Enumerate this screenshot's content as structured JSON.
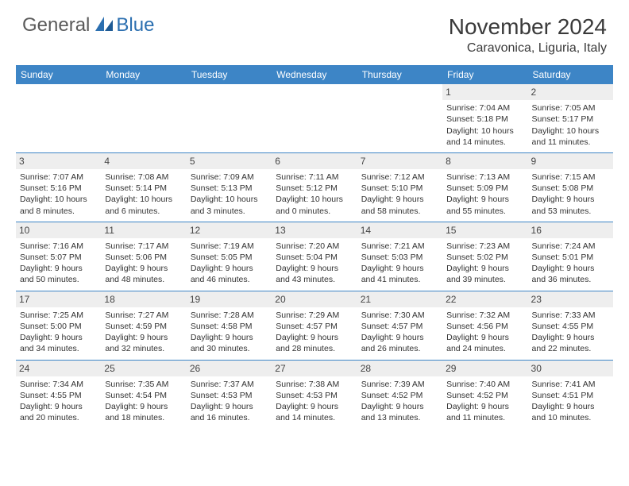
{
  "logo": {
    "text1": "General",
    "text2": "Blue"
  },
  "title": "November 2024",
  "location": "Caravonica, Liguria, Italy",
  "colors": {
    "header_bg": "#3d85c6",
    "header_text": "#ffffff",
    "daynum_bg": "#eeeeee",
    "logo_gray": "#5a5a5a",
    "logo_blue": "#2b6fb0",
    "rule": "#3d85c6"
  },
  "weekdays": [
    "Sunday",
    "Monday",
    "Tuesday",
    "Wednesday",
    "Thursday",
    "Friday",
    "Saturday"
  ],
  "weeks": [
    [
      {
        "day": "",
        "lines": [
          "",
          "",
          "",
          ""
        ]
      },
      {
        "day": "",
        "lines": [
          "",
          "",
          "",
          ""
        ]
      },
      {
        "day": "",
        "lines": [
          "",
          "",
          "",
          ""
        ]
      },
      {
        "day": "",
        "lines": [
          "",
          "",
          "",
          ""
        ]
      },
      {
        "day": "",
        "lines": [
          "",
          "",
          "",
          ""
        ]
      },
      {
        "day": "1",
        "lines": [
          "Sunrise: 7:04 AM",
          "Sunset: 5:18 PM",
          "Daylight: 10 hours",
          "and 14 minutes."
        ]
      },
      {
        "day": "2",
        "lines": [
          "Sunrise: 7:05 AM",
          "Sunset: 5:17 PM",
          "Daylight: 10 hours",
          "and 11 minutes."
        ]
      }
    ],
    [
      {
        "day": "3",
        "lines": [
          "Sunrise: 7:07 AM",
          "Sunset: 5:16 PM",
          "Daylight: 10 hours",
          "and 8 minutes."
        ]
      },
      {
        "day": "4",
        "lines": [
          "Sunrise: 7:08 AM",
          "Sunset: 5:14 PM",
          "Daylight: 10 hours",
          "and 6 minutes."
        ]
      },
      {
        "day": "5",
        "lines": [
          "Sunrise: 7:09 AM",
          "Sunset: 5:13 PM",
          "Daylight: 10 hours",
          "and 3 minutes."
        ]
      },
      {
        "day": "6",
        "lines": [
          "Sunrise: 7:11 AM",
          "Sunset: 5:12 PM",
          "Daylight: 10 hours",
          "and 0 minutes."
        ]
      },
      {
        "day": "7",
        "lines": [
          "Sunrise: 7:12 AM",
          "Sunset: 5:10 PM",
          "Daylight: 9 hours",
          "and 58 minutes."
        ]
      },
      {
        "day": "8",
        "lines": [
          "Sunrise: 7:13 AM",
          "Sunset: 5:09 PM",
          "Daylight: 9 hours",
          "and 55 minutes."
        ]
      },
      {
        "day": "9",
        "lines": [
          "Sunrise: 7:15 AM",
          "Sunset: 5:08 PM",
          "Daylight: 9 hours",
          "and 53 minutes."
        ]
      }
    ],
    [
      {
        "day": "10",
        "lines": [
          "Sunrise: 7:16 AM",
          "Sunset: 5:07 PM",
          "Daylight: 9 hours",
          "and 50 minutes."
        ]
      },
      {
        "day": "11",
        "lines": [
          "Sunrise: 7:17 AM",
          "Sunset: 5:06 PM",
          "Daylight: 9 hours",
          "and 48 minutes."
        ]
      },
      {
        "day": "12",
        "lines": [
          "Sunrise: 7:19 AM",
          "Sunset: 5:05 PM",
          "Daylight: 9 hours",
          "and 46 minutes."
        ]
      },
      {
        "day": "13",
        "lines": [
          "Sunrise: 7:20 AM",
          "Sunset: 5:04 PM",
          "Daylight: 9 hours",
          "and 43 minutes."
        ]
      },
      {
        "day": "14",
        "lines": [
          "Sunrise: 7:21 AM",
          "Sunset: 5:03 PM",
          "Daylight: 9 hours",
          "and 41 minutes."
        ]
      },
      {
        "day": "15",
        "lines": [
          "Sunrise: 7:23 AM",
          "Sunset: 5:02 PM",
          "Daylight: 9 hours",
          "and 39 minutes."
        ]
      },
      {
        "day": "16",
        "lines": [
          "Sunrise: 7:24 AM",
          "Sunset: 5:01 PM",
          "Daylight: 9 hours",
          "and 36 minutes."
        ]
      }
    ],
    [
      {
        "day": "17",
        "lines": [
          "Sunrise: 7:25 AM",
          "Sunset: 5:00 PM",
          "Daylight: 9 hours",
          "and 34 minutes."
        ]
      },
      {
        "day": "18",
        "lines": [
          "Sunrise: 7:27 AM",
          "Sunset: 4:59 PM",
          "Daylight: 9 hours",
          "and 32 minutes."
        ]
      },
      {
        "day": "19",
        "lines": [
          "Sunrise: 7:28 AM",
          "Sunset: 4:58 PM",
          "Daylight: 9 hours",
          "and 30 minutes."
        ]
      },
      {
        "day": "20",
        "lines": [
          "Sunrise: 7:29 AM",
          "Sunset: 4:57 PM",
          "Daylight: 9 hours",
          "and 28 minutes."
        ]
      },
      {
        "day": "21",
        "lines": [
          "Sunrise: 7:30 AM",
          "Sunset: 4:57 PM",
          "Daylight: 9 hours",
          "and 26 minutes."
        ]
      },
      {
        "day": "22",
        "lines": [
          "Sunrise: 7:32 AM",
          "Sunset: 4:56 PM",
          "Daylight: 9 hours",
          "and 24 minutes."
        ]
      },
      {
        "day": "23",
        "lines": [
          "Sunrise: 7:33 AM",
          "Sunset: 4:55 PM",
          "Daylight: 9 hours",
          "and 22 minutes."
        ]
      }
    ],
    [
      {
        "day": "24",
        "lines": [
          "Sunrise: 7:34 AM",
          "Sunset: 4:55 PM",
          "Daylight: 9 hours",
          "and 20 minutes."
        ]
      },
      {
        "day": "25",
        "lines": [
          "Sunrise: 7:35 AM",
          "Sunset: 4:54 PM",
          "Daylight: 9 hours",
          "and 18 minutes."
        ]
      },
      {
        "day": "26",
        "lines": [
          "Sunrise: 7:37 AM",
          "Sunset: 4:53 PM",
          "Daylight: 9 hours",
          "and 16 minutes."
        ]
      },
      {
        "day": "27",
        "lines": [
          "Sunrise: 7:38 AM",
          "Sunset: 4:53 PM",
          "Daylight: 9 hours",
          "and 14 minutes."
        ]
      },
      {
        "day": "28",
        "lines": [
          "Sunrise: 7:39 AM",
          "Sunset: 4:52 PM",
          "Daylight: 9 hours",
          "and 13 minutes."
        ]
      },
      {
        "day": "29",
        "lines": [
          "Sunrise: 7:40 AM",
          "Sunset: 4:52 PM",
          "Daylight: 9 hours",
          "and 11 minutes."
        ]
      },
      {
        "day": "30",
        "lines": [
          "Sunrise: 7:41 AM",
          "Sunset: 4:51 PM",
          "Daylight: 9 hours",
          "and 10 minutes."
        ]
      }
    ]
  ]
}
